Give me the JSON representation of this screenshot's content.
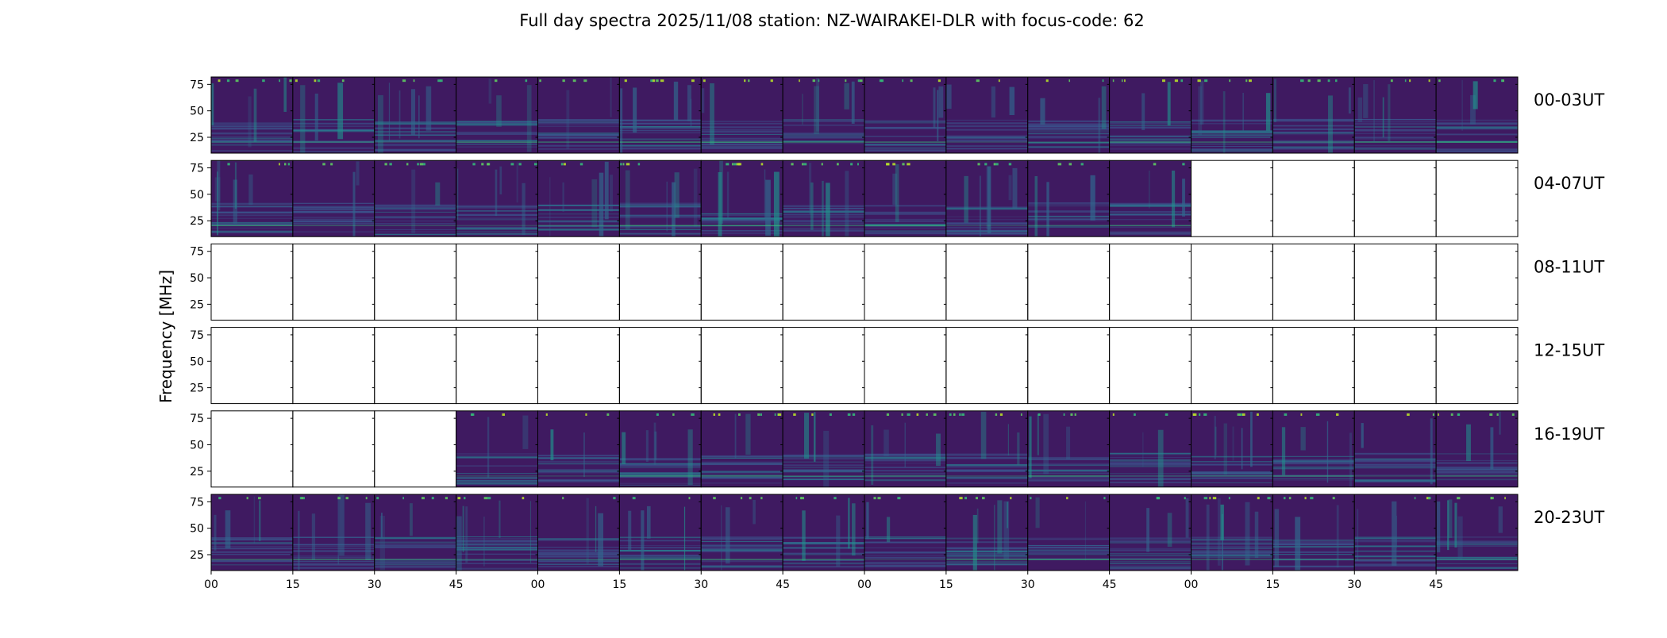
{
  "chart_data": {
    "type": "heatmap",
    "title": "Full day spectra 2025/11/08 station: NZ-WAIRAKEI-DLR with focus-code: 62",
    "ylabel": "Frequency [MHz]",
    "xlabel": "",
    "ylim": [
      10,
      82
    ],
    "y_ticks": [
      "75",
      "50",
      "25"
    ],
    "y_tick_values": [
      75,
      50,
      25
    ],
    "x_tick_labels": [
      "00",
      "15",
      "30",
      "45",
      "00",
      "15",
      "30",
      "45",
      "00",
      "15",
      "30",
      "45",
      "00",
      "15",
      "30",
      "45"
    ],
    "panels_per_row": 16,
    "panel_minutes": 15,
    "colormap": "viridis",
    "grid": false,
    "rows": [
      {
        "label": "00-03UT",
        "present": [
          1,
          1,
          1,
          1,
          1,
          1,
          1,
          1,
          1,
          1,
          1,
          1,
          1,
          1,
          1,
          1
        ]
      },
      {
        "label": "04-07UT",
        "present": [
          1,
          1,
          1,
          1,
          1,
          1,
          1,
          1,
          1,
          1,
          1,
          1,
          0,
          0,
          0,
          0
        ]
      },
      {
        "label": "08-11UT",
        "present": [
          0,
          0,
          0,
          0,
          0,
          0,
          0,
          0,
          0,
          0,
          0,
          0,
          0,
          0,
          0,
          0
        ]
      },
      {
        "label": "12-15UT",
        "present": [
          0,
          0,
          0,
          0,
          0,
          0,
          0,
          0,
          0,
          0,
          0,
          0,
          0,
          0,
          0,
          0
        ]
      },
      {
        "label": "16-19UT",
        "present": [
          0,
          0,
          0,
          1,
          1,
          1,
          1,
          1,
          1,
          1,
          1,
          1,
          1,
          1,
          1,
          1
        ]
      },
      {
        "label": "20-23UT",
        "present": [
          1,
          1,
          1,
          1,
          1,
          1,
          1,
          1,
          1,
          1,
          1,
          1,
          1,
          1,
          1,
          1
        ]
      }
    ]
  }
}
